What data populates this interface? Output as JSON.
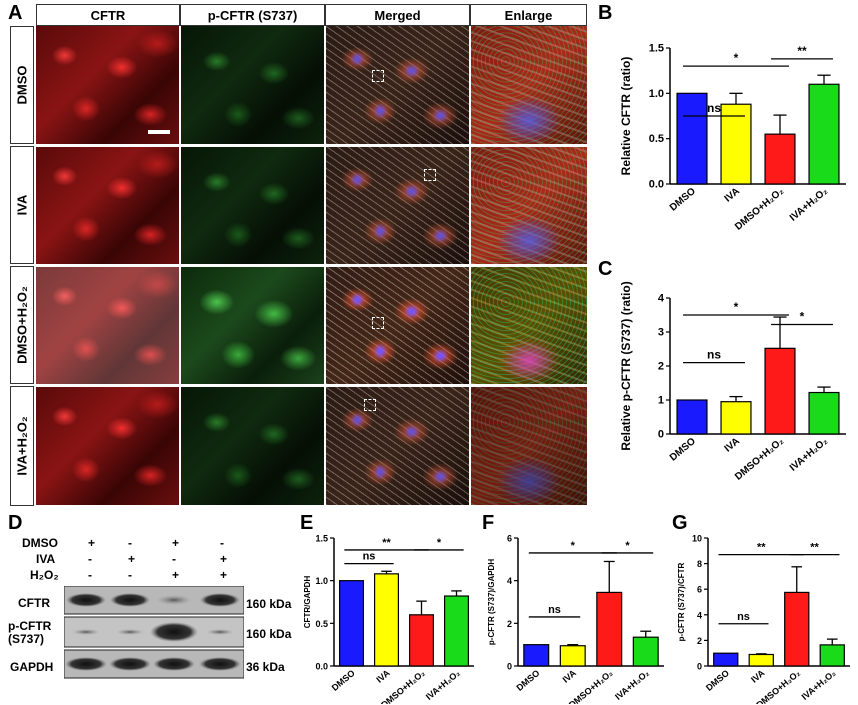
{
  "panels": {
    "A": "A",
    "B": "B",
    "C": "C",
    "D": "D",
    "E": "E",
    "F": "F",
    "G": "G"
  },
  "micrograph": {
    "columns": [
      "CFTR",
      "p-CFTR (S737)",
      "Merged",
      "Enlarge"
    ],
    "rows": [
      "DMSO",
      "IVA",
      "DMSO+H₂O₂",
      "IVA+H₂O₂"
    ]
  },
  "blot": {
    "treatments": [
      {
        "label": "DMSO",
        "signs": [
          "+",
          "-",
          "+",
          "-"
        ]
      },
      {
        "label": "IVA",
        "signs": [
          "-",
          "+",
          "-",
          "+"
        ]
      },
      {
        "label": "H₂O₂",
        "signs": [
          "-",
          "-",
          "+",
          "+"
        ]
      }
    ],
    "bands": [
      {
        "label": "CFTR",
        "size": "160 kDa"
      },
      {
        "label": "p-CFTR\n(S737)",
        "label1": "p-CFTR",
        "label2": "(S737)",
        "size": "160 kDa"
      },
      {
        "label": "GAPDH",
        "size": "36 kDa"
      }
    ]
  },
  "colors": {
    "blue": "#1a1aff",
    "yellow": "#ffff00",
    "red": "#ff1a1a",
    "green": "#1adb1a"
  },
  "chart_data": [
    {
      "id": "B",
      "type": "bar",
      "categories": [
        "DMSO",
        "IVA",
        "DMSO+H₂O₂",
        "IVA+H₂O₂"
      ],
      "values": [
        1.0,
        0.88,
        0.55,
        1.1
      ],
      "errors": [
        0,
        0.12,
        0.21,
        0.1
      ],
      "ylabel": "Relative CFTR (ratio)",
      "ylim": [
        0,
        1.5
      ],
      "yticks": [
        0.0,
        0.5,
        1.0,
        1.5
      ],
      "ytick_labels": [
        "0.0",
        "0.5",
        "1.0",
        "1.5"
      ],
      "annotations": [
        {
          "from": 0,
          "to": 1,
          "y": 0.75,
          "text": "ns"
        },
        {
          "from": 0,
          "to": 2,
          "y": 1.3,
          "text": "*"
        },
        {
          "from": 2,
          "to": 3,
          "y": 1.38,
          "text": "**"
        }
      ]
    },
    {
      "id": "C",
      "type": "bar",
      "categories": [
        "DMSO",
        "IVA",
        "DMSO+H₂O₂",
        "IVA+H₂O₂"
      ],
      "values": [
        1.0,
        0.95,
        2.52,
        1.22
      ],
      "errors": [
        0,
        0.15,
        0.92,
        0.16
      ],
      "ylabel": "Relative p-CFTR (S737) (ratio)",
      "ylim": [
        0,
        4
      ],
      "yticks": [
        0,
        1,
        2,
        3,
        4
      ],
      "ytick_labels": [
        "0",
        "1",
        "2",
        "3",
        "4"
      ],
      "annotations": [
        {
          "from": 0,
          "to": 1,
          "y": 2.1,
          "text": "ns"
        },
        {
          "from": 0,
          "to": 2,
          "y": 3.5,
          "text": "*"
        },
        {
          "from": 2,
          "to": 3,
          "y": 3.22,
          "text": "*"
        }
      ]
    },
    {
      "id": "E",
      "type": "bar",
      "categories": [
        "DMSO",
        "IVA",
        "DMSO+H₂O₂",
        "IVA+H₂O₂"
      ],
      "values": [
        1.0,
        1.08,
        0.6,
        0.82
      ],
      "errors": [
        0,
        0.03,
        0.16,
        0.06
      ],
      "ylabel": "CFTR/GAPDH",
      "ylim": [
        0,
        1.5
      ],
      "yticks": [
        0.0,
        0.5,
        1.0,
        1.5
      ],
      "ytick_labels": [
        "0.0",
        "0.5",
        "1.0",
        "1.5"
      ],
      "annotations": [
        {
          "from": 0,
          "to": 1,
          "y": 1.2,
          "text": "ns"
        },
        {
          "from": 0,
          "to": 2,
          "y": 1.36,
          "text": "**"
        },
        {
          "from": 2,
          "to": 3,
          "y": 1.36,
          "text": "*"
        }
      ]
    },
    {
      "id": "F",
      "type": "bar",
      "categories": [
        "DMSO",
        "IVA",
        "DMSO+H₂O₂",
        "IVA+H₂O₂"
      ],
      "values": [
        1.0,
        0.95,
        3.45,
        1.35
      ],
      "errors": [
        0,
        0.05,
        1.45,
        0.28
      ],
      "ylabel": "p-CFTR (S737)/GAPDH",
      "ylim": [
        0,
        6
      ],
      "yticks": [
        0,
        2,
        4,
        6
      ],
      "ytick_labels": [
        "0",
        "2",
        "4",
        "6"
      ],
      "annotations": [
        {
          "from": 0,
          "to": 1,
          "y": 2.3,
          "text": "ns"
        },
        {
          "from": 0,
          "to": 2,
          "y": 5.3,
          "text": "*"
        },
        {
          "from": 2,
          "to": 3,
          "y": 5.3,
          "text": "*"
        }
      ]
    },
    {
      "id": "G",
      "type": "bar",
      "categories": [
        "DMSO",
        "IVA",
        "DMSO+H₂O₂",
        "IVA+H₂O₂"
      ],
      "values": [
        1.0,
        0.9,
        5.75,
        1.65
      ],
      "errors": [
        0,
        0.05,
        2.0,
        0.45
      ],
      "ylabel": "p-CFTR (S737)/CFTR",
      "ylim": [
        0,
        10
      ],
      "yticks": [
        0,
        2,
        4,
        6,
        8,
        10
      ],
      "ytick_labels": [
        "0",
        "2",
        "4",
        "6",
        "8",
        "10"
      ],
      "annotations": [
        {
          "from": 0,
          "to": 1,
          "y": 3.3,
          "text": "ns"
        },
        {
          "from": 0,
          "to": 2,
          "y": 8.7,
          "text": "**"
        },
        {
          "from": 2,
          "to": 3,
          "y": 8.7,
          "text": "**"
        }
      ]
    }
  ]
}
